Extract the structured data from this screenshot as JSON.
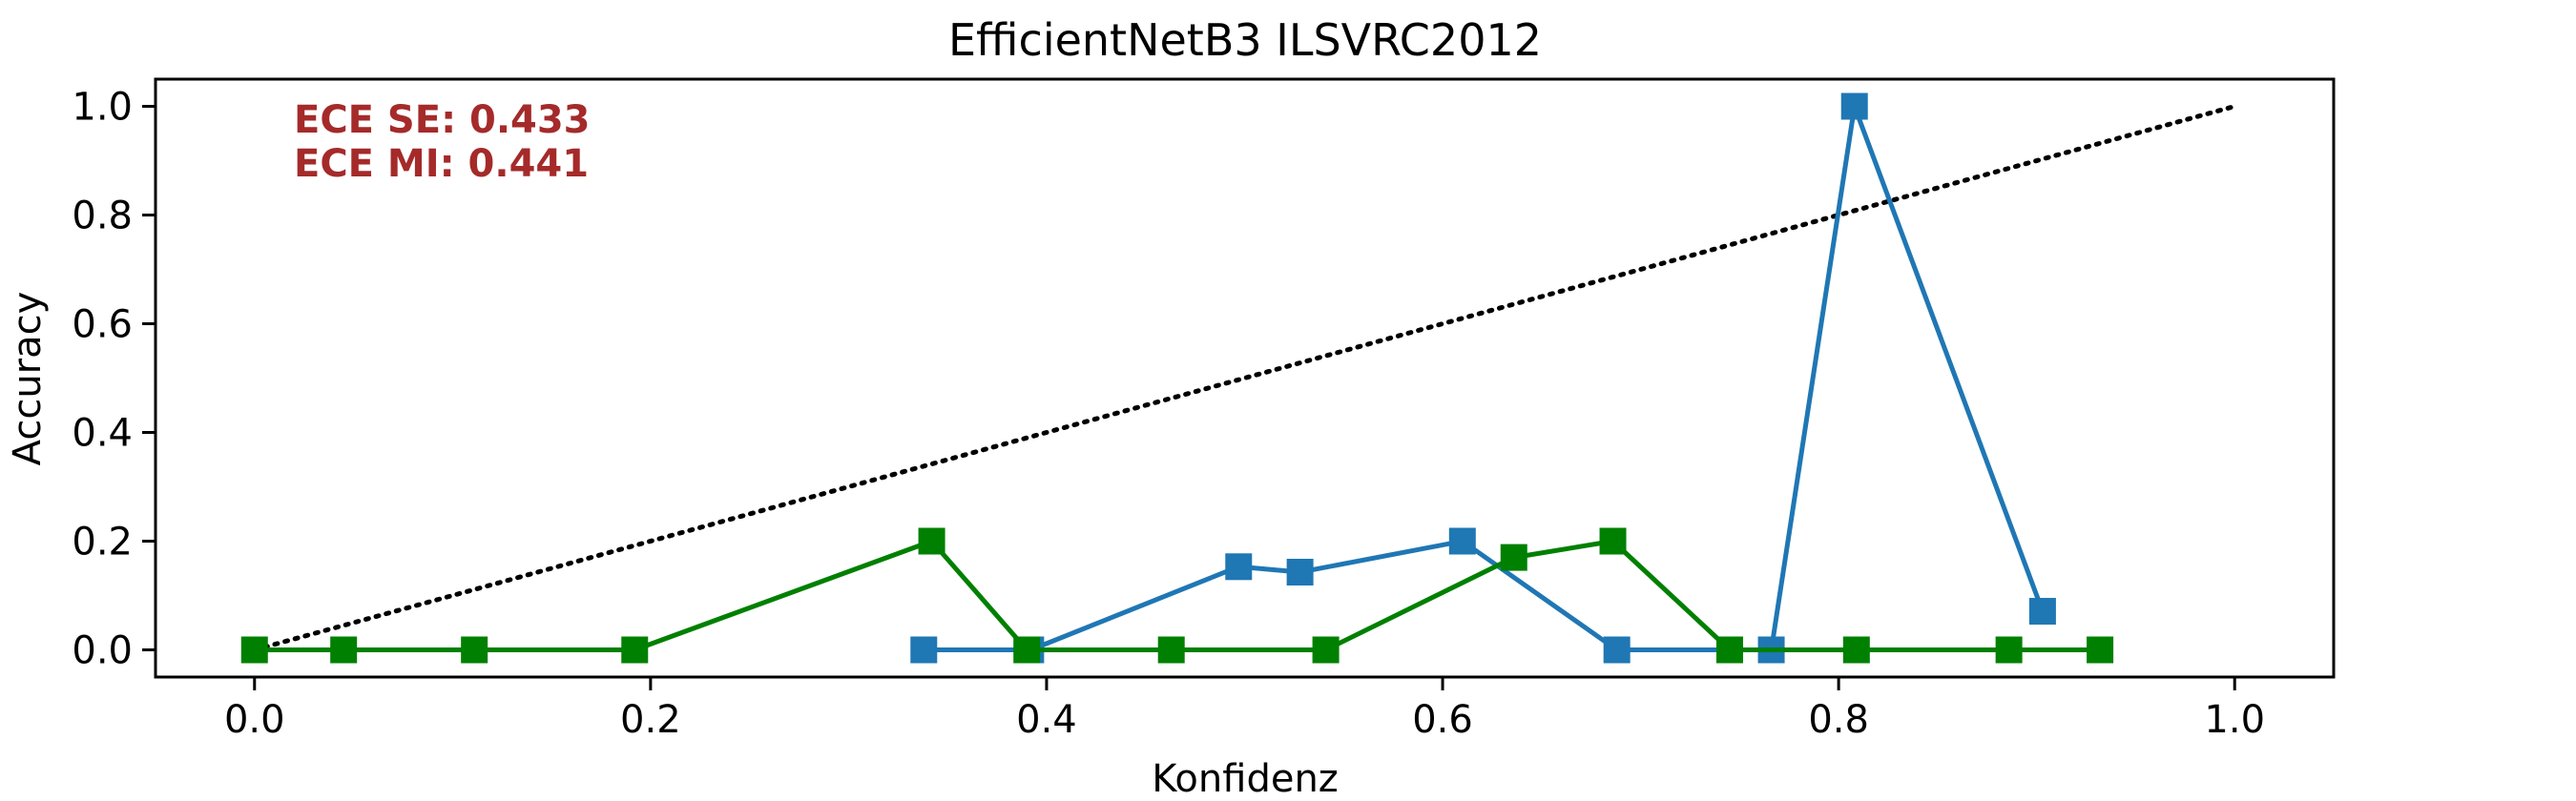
{
  "chart_data": {
    "type": "line",
    "title": "EfficientNetB3 ILSVRC2012",
    "xlabel": "Konfidenz",
    "ylabel": "Accuracy",
    "xlim": [
      -0.05,
      1.05
    ],
    "ylim": [
      -0.05,
      1.05
    ],
    "xticks": [
      "0.0",
      "0.2",
      "0.4",
      "0.6",
      "0.8",
      "1.0"
    ],
    "yticks": [
      "0.0",
      "0.2",
      "0.4",
      "0.6",
      "0.8",
      "1.0"
    ],
    "grid": false,
    "annotations": [
      "ECE SE: 0.433",
      "ECE MI: 0.441"
    ],
    "annotation_color": "#a52a2a",
    "reference_line": {
      "x": [
        0.0,
        1.0
      ],
      "y": [
        0.0,
        1.0
      ],
      "style": "dotted",
      "color": "#000000"
    },
    "series": [
      {
        "color": "#1f77b4",
        "marker": "square",
        "x": [
          0.338,
          0.392,
          0.497,
          0.528,
          0.61,
          0.688,
          0.766,
          0.808,
          0.903
        ],
        "y": [
          0.0,
          0.0,
          0.153,
          0.143,
          0.2,
          0.0,
          0.0,
          1.0,
          0.071
        ]
      },
      {
        "color": "#008000",
        "marker": "square",
        "x": [
          0.0,
          0.045,
          0.111,
          0.192,
          0.342,
          0.39,
          0.463,
          0.541,
          0.636,
          0.686,
          0.745,
          0.809,
          0.886,
          0.932
        ],
        "y": [
          0.0,
          0.0,
          0.0,
          0.0,
          0.2,
          0.0,
          0.0,
          0.0,
          0.17,
          0.2,
          0.0,
          0.0,
          0.0,
          0.0
        ]
      }
    ]
  }
}
